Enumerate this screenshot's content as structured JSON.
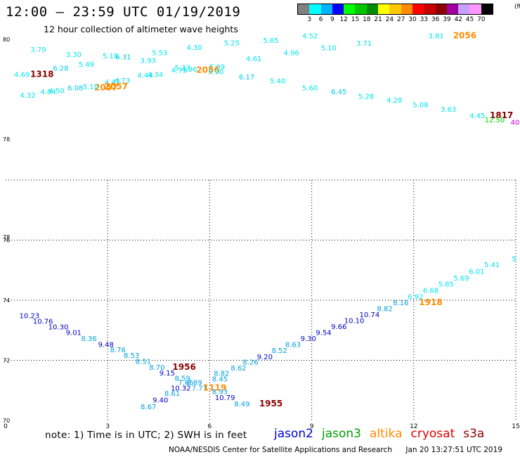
{
  "title": "12:00 – 23:59 UTC 01/19/2019",
  "subtitle": "12 hour collection of altimeter wave heights",
  "colorbar": {
    "colors": [
      "#808080",
      "#00ffff",
      "#00b4ff",
      "#0000ff",
      "#00ff00",
      "#00c800",
      "#008c00",
      "#ffff00",
      "#ffc800",
      "#ff8c00",
      "#ff0000",
      "#c80000",
      "#8c0000",
      "#a000a0",
      "#c8a0ff",
      "#ff96ff",
      "#000000"
    ],
    "labels": [
      "3",
      "6",
      "9",
      "12",
      "15",
      "18",
      "21",
      "24",
      "27",
      "30",
      "33",
      "36",
      "39",
      "42",
      "45",
      "70"
    ],
    "unit": "(ft)"
  },
  "note": "note:  1) Time is in UTC;  2) SWH is in feet",
  "legend": [
    {
      "name": "jason2",
      "color": "#0000dc"
    },
    {
      "name": "jason3",
      "color": "#00a000"
    },
    {
      "name": "altika",
      "color": "#ff8c00"
    },
    {
      "name": "cryosat",
      "color": "#e00000"
    },
    {
      "name": "s3a",
      "color": "#8b0000"
    }
  ],
  "footer": {
    "agency": "NOAA/NESDIS Center for Satellite Applications and Research",
    "timestamp": "Jan 20 13:27:51 UTC 2019"
  },
  "chart_data": {
    "type": "scatter",
    "xlim": [
      0,
      15
    ],
    "x_ticks": [
      0,
      3,
      6,
      9,
      12,
      15
    ],
    "grid": true,
    "y_ticks_lower": [
      70,
      72,
      74,
      76,
      78
    ],
    "y_ticks_upper": [
      78,
      80
    ],
    "upper_ylim": [
      78,
      80
    ],
    "lower_ylim": [
      70,
      78
    ],
    "units": "feet",
    "points_upper": [
      {
        "x": 0.96,
        "y": 79.75,
        "v": "3.79",
        "c": "#00e5ee"
      },
      {
        "x": 2.0,
        "y": 79.65,
        "v": "3.30",
        "c": "#00e5ee"
      },
      {
        "x": 1.62,
        "y": 79.37,
        "v": "6.28",
        "c": "#00c8e6"
      },
      {
        "x": 0.48,
        "y": 79.25,
        "v": "4.69",
        "c": "#00e5ee"
      },
      {
        "x": 1.07,
        "y": 79.25,
        "v": "1318",
        "c": "#8b0000",
        "bold": true
      },
      {
        "x": 2.37,
        "y": 79.45,
        "v": "5.49",
        "c": "#00e5ee"
      },
      {
        "x": 3.08,
        "y": 79.62,
        "v": "5.18",
        "c": "#00e5ee"
      },
      {
        "x": 3.46,
        "y": 79.6,
        "v": "6.31",
        "c": "#00c8e6"
      },
      {
        "x": 4.53,
        "y": 79.68,
        "v": "5.53",
        "c": "#00e5ee"
      },
      {
        "x": 5.55,
        "y": 79.79,
        "v": "4.30",
        "c": "#00e5ee"
      },
      {
        "x": 6.65,
        "y": 79.88,
        "v": "5.25",
        "c": "#00e5ee"
      },
      {
        "x": 7.8,
        "y": 79.93,
        "v": "5.65",
        "c": "#00e5ee"
      },
      {
        "x": 8.95,
        "y": 80.02,
        "v": "4.52",
        "c": "#00e5ee"
      },
      {
        "x": 12.66,
        "y": 80.02,
        "v": "3.81",
        "c": "#00e5ee"
      },
      {
        "x": 13.5,
        "y": 80.02,
        "v": "2056",
        "c": "#ff8c00",
        "bold": true
      },
      {
        "x": 10.54,
        "y": 79.87,
        "v": "3.71",
        "c": "#00e5ee"
      },
      {
        "x": 9.5,
        "y": 79.78,
        "v": "5.10",
        "c": "#00e5ee"
      },
      {
        "x": 8.4,
        "y": 79.68,
        "v": "4.96",
        "c": "#00e5ee"
      },
      {
        "x": 7.3,
        "y": 79.56,
        "v": "4.61",
        "c": "#00e5ee"
      },
      {
        "x": 4.19,
        "y": 79.53,
        "v": "3.93",
        "c": "#00e5ee"
      },
      {
        "x": 6.22,
        "y": 79.4,
        "v": "5.69",
        "c": "#00e5ee"
      },
      {
        "x": 5.2,
        "y": 79.38,
        "v": "5.23",
        "c": "#00e5ee"
      },
      {
        "x": 5.1,
        "y": 79.33,
        "v": "4.73",
        "c": "#00e5ee"
      },
      {
        "x": 5.4,
        "y": 79.35,
        "v": "4.96",
        "c": "#00e5ee"
      },
      {
        "x": 5.95,
        "y": 79.33,
        "v": "2056",
        "c": "#ff8c00",
        "bold": true
      },
      {
        "x": 6.18,
        "y": 79.3,
        "v": "5.90",
        "c": "#00e5ee"
      },
      {
        "x": 4.4,
        "y": 79.25,
        "v": "4.34",
        "c": "#00e5ee"
      },
      {
        "x": 4.1,
        "y": 79.23,
        "v": "4.44",
        "c": "#00e5ee"
      },
      {
        "x": 7.09,
        "y": 79.2,
        "v": "6.17",
        "c": "#00c8e6"
      },
      {
        "x": 8.0,
        "y": 79.12,
        "v": "5.40",
        "c": "#00e5ee"
      },
      {
        "x": 8.95,
        "y": 78.98,
        "v": "5.60",
        "c": "#00e5ee"
      },
      {
        "x": 3.43,
        "y": 79.13,
        "v": "4.73",
        "c": "#00e5ee"
      },
      {
        "x": 3.14,
        "y": 79.1,
        "v": "4.47",
        "c": "#00e5ee"
      },
      {
        "x": 3.25,
        "y": 79.0,
        "v": "2057",
        "c": "#ff8c00",
        "bold": true
      },
      {
        "x": 2.95,
        "y": 78.98,
        "v": "2057",
        "c": "#ff8c00",
        "bold": true
      },
      {
        "x": 2.5,
        "y": 79.0,
        "v": "5.10",
        "c": "#00e5ee"
      },
      {
        "x": 2.05,
        "y": 78.98,
        "v": "6.08",
        "c": "#00c8e6"
      },
      {
        "x": 1.5,
        "y": 78.92,
        "v": "4.50",
        "c": "#00e5ee"
      },
      {
        "x": 1.25,
        "y": 78.9,
        "v": "4.84",
        "c": "#00e5ee"
      },
      {
        "x": 0.65,
        "y": 78.83,
        "v": "4.32",
        "c": "#00e5ee"
      },
      {
        "x": 9.8,
        "y": 78.9,
        "v": "6.45",
        "c": "#00c8e6"
      },
      {
        "x": 10.6,
        "y": 78.81,
        "v": "5.28",
        "c": "#00e5ee"
      },
      {
        "x": 11.43,
        "y": 78.73,
        "v": "4.28",
        "c": "#00e5ee"
      },
      {
        "x": 12.2,
        "y": 78.64,
        "v": "5.08",
        "c": "#00e5ee"
      },
      {
        "x": 13.02,
        "y": 78.55,
        "v": "3.63",
        "c": "#00e5ee"
      },
      {
        "x": 13.87,
        "y": 78.42,
        "v": "4.45",
        "c": "#00e5ee"
      },
      {
        "x": 14.58,
        "y": 78.42,
        "v": "1817",
        "c": "#8b0000",
        "bold": true
      },
      {
        "x": 14.38,
        "y": 78.34,
        "v": "12.50",
        "c": "#00d000"
      },
      {
        "x": 14.98,
        "y": 78.29,
        "v": "40",
        "c": "#c800c8"
      }
    ],
    "points_lower": [
      {
        "x": 0.7,
        "y": 73.4,
        "v": "10.23",
        "c": "#0000c8"
      },
      {
        "x": 1.1,
        "y": 73.22,
        "v": "10.76",
        "c": "#0000c8"
      },
      {
        "x": 1.55,
        "y": 73.03,
        "v": "10.30",
        "c": "#0000c8"
      },
      {
        "x": 2.0,
        "y": 72.84,
        "v": "9.01",
        "c": "#0000c8"
      },
      {
        "x": 2.45,
        "y": 72.64,
        "v": "8.36",
        "c": "#00a0e0"
      },
      {
        "x": 2.95,
        "y": 72.45,
        "v": "9.48",
        "c": "#0000c8"
      },
      {
        "x": 3.3,
        "y": 72.27,
        "v": "8.76",
        "c": "#00a0e0"
      },
      {
        "x": 3.7,
        "y": 72.08,
        "v": "8.53",
        "c": "#00a0e0"
      },
      {
        "x": 4.05,
        "y": 71.88,
        "v": "8.51",
        "c": "#00a0e0"
      },
      {
        "x": 4.45,
        "y": 71.68,
        "v": "8.70",
        "c": "#00a0e0"
      },
      {
        "x": 5.25,
        "y": 71.68,
        "v": "1956",
        "c": "#8b0000",
        "bold": true
      },
      {
        "x": 4.75,
        "y": 71.5,
        "v": "9.15",
        "c": "#0000c8"
      },
      {
        "x": 5.2,
        "y": 71.32,
        "v": "8.59",
        "c": "#00a0e0"
      },
      {
        "x": 6.3,
        "y": 71.3,
        "v": "8.45",
        "c": "#00a0e0"
      },
      {
        "x": 6.35,
        "y": 71.48,
        "v": "8.82",
        "c": "#00a0e0"
      },
      {
        "x": 6.85,
        "y": 71.66,
        "v": "8.62",
        "c": "#00a0e0"
      },
      {
        "x": 7.2,
        "y": 71.86,
        "v": "8.26",
        "c": "#00a0e0"
      },
      {
        "x": 7.62,
        "y": 72.04,
        "v": "9.20",
        "c": "#0000c8"
      },
      {
        "x": 8.05,
        "y": 72.24,
        "v": "8.52",
        "c": "#00a0e0"
      },
      {
        "x": 8.45,
        "y": 72.44,
        "v": "8.63",
        "c": "#00a0e0"
      },
      {
        "x": 8.9,
        "y": 72.64,
        "v": "9.30",
        "c": "#0000c8"
      },
      {
        "x": 9.35,
        "y": 72.84,
        "v": "9.54",
        "c": "#0000c8"
      },
      {
        "x": 9.8,
        "y": 73.04,
        "v": "9.66",
        "c": "#0000c8"
      },
      {
        "x": 10.25,
        "y": 73.24,
        "v": "10.10",
        "c": "#0000c8"
      },
      {
        "x": 10.7,
        "y": 73.44,
        "v": "10.74",
        "c": "#0000c8"
      },
      {
        "x": 11.15,
        "y": 73.64,
        "v": "8.82",
        "c": "#00a0e0"
      },
      {
        "x": 11.62,
        "y": 73.84,
        "v": "8.16",
        "c": "#00a0e0"
      },
      {
        "x": 12.5,
        "y": 73.84,
        "v": "1918",
        "c": "#ff8c00",
        "bold": true
      },
      {
        "x": 12.05,
        "y": 74.04,
        "v": "6.92",
        "c": "#00e5ee"
      },
      {
        "x": 12.5,
        "y": 74.24,
        "v": "6.68",
        "c": "#00e5ee"
      },
      {
        "x": 12.95,
        "y": 74.46,
        "v": "5.85",
        "c": "#00e5ee"
      },
      {
        "x": 13.4,
        "y": 74.66,
        "v": "5.69",
        "c": "#00e5ee"
      },
      {
        "x": 13.85,
        "y": 74.88,
        "v": "6.01",
        "c": "#00e5ee"
      },
      {
        "x": 14.3,
        "y": 75.1,
        "v": "5.41",
        "c": "#00e5ee"
      },
      {
        "x": 14.95,
        "y": 75.3,
        "v": "5",
        "c": "#00e5ee"
      },
      {
        "x": 5.3,
        "y": 71.18,
        "v": "7.65",
        "c": "#00a0e0"
      },
      {
        "x": 5.55,
        "y": 71.18,
        "v": "8.89",
        "c": "#00a0e0"
      },
      {
        "x": 5.15,
        "y": 71.0,
        "v": "10.32",
        "c": "#0000c8"
      },
      {
        "x": 5.7,
        "y": 70.99,
        "v": "7.71",
        "c": "#00a0e0"
      },
      {
        "x": 6.15,
        "y": 70.99,
        "v": "1119",
        "c": "#ff8c00",
        "bold": true
      },
      {
        "x": 6.3,
        "y": 70.88,
        "v": "8.93",
        "c": "#00a0e0"
      },
      {
        "x": 4.9,
        "y": 70.82,
        "v": "8.61",
        "c": "#00a0e0"
      },
      {
        "x": 4.55,
        "y": 70.6,
        "v": "9.40",
        "c": "#0000c8"
      },
      {
        "x": 6.45,
        "y": 70.68,
        "v": "10.79",
        "c": "#0000c8"
      },
      {
        "x": 6.95,
        "y": 70.47,
        "v": "8.49",
        "c": "#00a0e0"
      },
      {
        "x": 7.8,
        "y": 70.47,
        "v": "1955",
        "c": "#8b0000",
        "bold": true
      },
      {
        "x": 4.2,
        "y": 70.38,
        "v": "8.67",
        "c": "#00a0e0"
      }
    ]
  }
}
